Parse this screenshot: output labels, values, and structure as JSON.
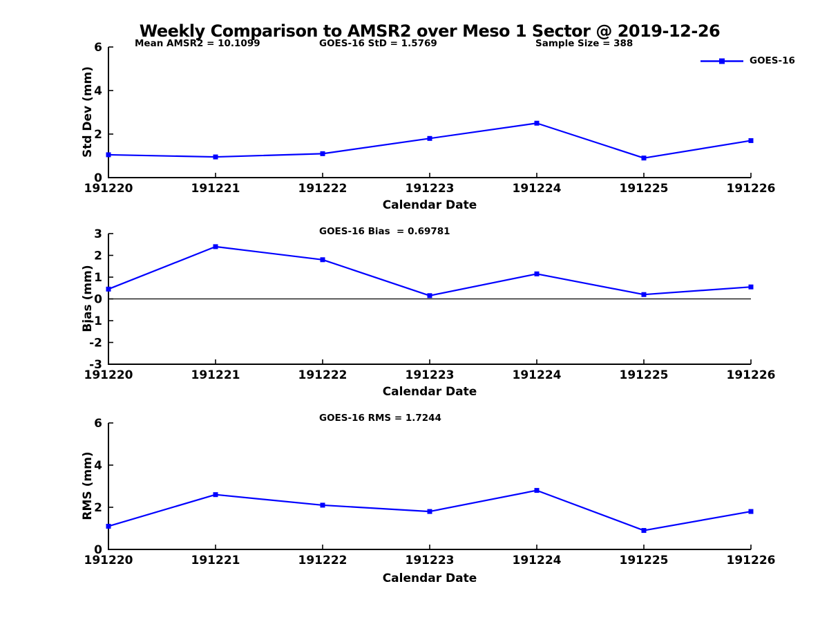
{
  "title": "Weekly Comparison to AMSR2 over Meso 1 Sector @ 2019-12-26",
  "legend": {
    "label": "GOES-16",
    "position": "top-right"
  },
  "colors": {
    "series": "#0000ff",
    "axis": "#000000",
    "text": "#000000",
    "background": "#ffffff"
  },
  "chart_data": [
    {
      "id": "std-dev",
      "type": "line",
      "ylabel": "Std Dev (mm)",
      "xlabel": "Calendar Date",
      "annotations": [
        "Mean AMSR2 = 10.1099",
        "GOES-16 StD = 1.5769",
        "Sample Size = 388"
      ],
      "categories": [
        "191220",
        "191221",
        "191222",
        "191223",
        "191224",
        "191225",
        "191226"
      ],
      "series": [
        {
          "name": "GOES-16",
          "marker": "square",
          "values": [
            1.05,
            0.95,
            1.1,
            1.8,
            2.5,
            0.9,
            1.7
          ]
        }
      ],
      "ylim": [
        0,
        6
      ],
      "yticks": [
        0,
        2,
        4,
        6
      ],
      "grid": false,
      "zero_line": false,
      "legend_position": "top-right"
    },
    {
      "id": "bias",
      "type": "line",
      "ylabel": "Bias (mm)",
      "xlabel": "Calendar Date",
      "annotations": [
        "GOES-16 Bias  = 0.69781"
      ],
      "categories": [
        "191220",
        "191221",
        "191222",
        "191223",
        "191224",
        "191225",
        "191226"
      ],
      "series": [
        {
          "name": "GOES-16",
          "marker": "square",
          "values": [
            0.45,
            2.4,
            1.8,
            0.15,
            1.15,
            0.2,
            0.55
          ]
        }
      ],
      "ylim": [
        -3,
        3
      ],
      "yticks": [
        -3,
        -2,
        -1,
        0,
        1,
        2,
        3
      ],
      "grid": false,
      "zero_line": true,
      "legend_position": "none"
    },
    {
      "id": "rms",
      "type": "line",
      "ylabel": "RMS (mm)",
      "xlabel": "Calendar Date",
      "annotations": [
        "GOES-16 RMS = 1.7244"
      ],
      "categories": [
        "191220",
        "191221",
        "191222",
        "191223",
        "191224",
        "191225",
        "191226"
      ],
      "series": [
        {
          "name": "GOES-16",
          "marker": "square",
          "values": [
            1.1,
            2.6,
            2.1,
            1.8,
            2.8,
            0.9,
            1.8
          ]
        }
      ],
      "ylim": [
        0,
        6
      ],
      "yticks": [
        0,
        2,
        4,
        6
      ],
      "grid": false,
      "zero_line": false,
      "legend_position": "none"
    }
  ]
}
